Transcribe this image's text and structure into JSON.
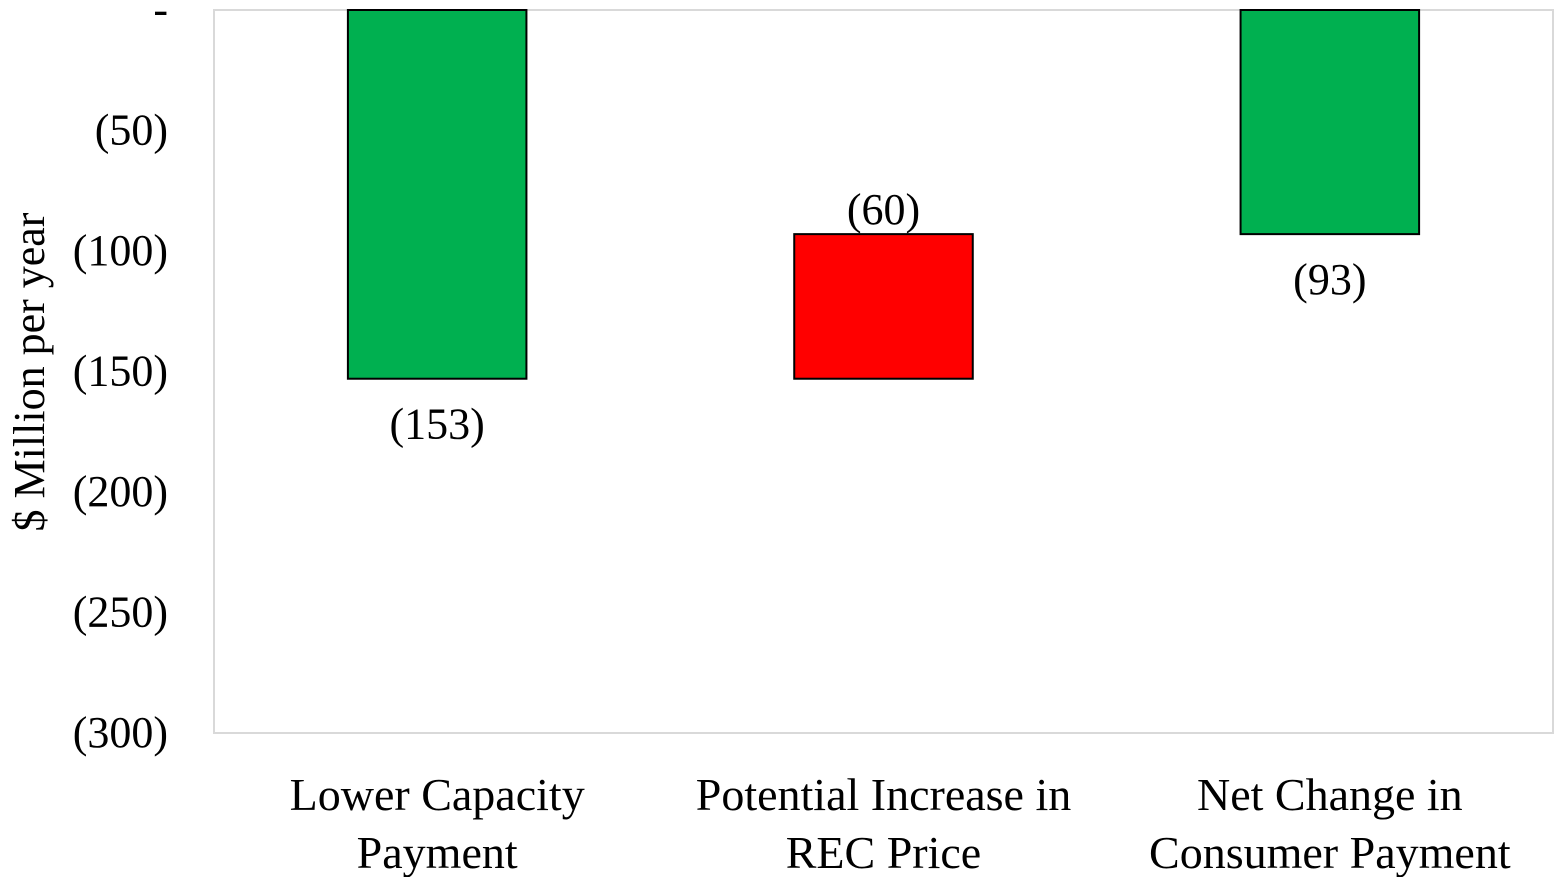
{
  "chart_data": {
    "type": "bar",
    "subtype": "waterfall",
    "title": "",
    "xlabel": "",
    "ylabel": "$ Million per year",
    "ylim": [
      -300,
      0
    ],
    "y_ticks": [
      0,
      -50,
      -100,
      -150,
      -200,
      -250,
      -300
    ],
    "y_tick_labels": [
      "-",
      "(50)",
      "(100)",
      "(150)",
      "(200)",
      "(250)",
      "(300)"
    ],
    "grid": false,
    "legend": "none",
    "bars": [
      {
        "category_lines": [
          "Lower Capacity",
          "Payment"
        ],
        "start": 0,
        "end": -153,
        "label": "(153)",
        "label_position": "below",
        "color": "#00B050"
      },
      {
        "category_lines": [
          "Potential Increase in",
          "REC Price"
        ],
        "start": -153,
        "end": -93,
        "label": "(60)",
        "label_position": "above",
        "color": "#FF0000"
      },
      {
        "category_lines": [
          "Net Change in",
          "Consumer Payment"
        ],
        "start": 0,
        "end": -93,
        "label": "(93)",
        "label_position": "below",
        "color": "#00B050"
      }
    ]
  }
}
